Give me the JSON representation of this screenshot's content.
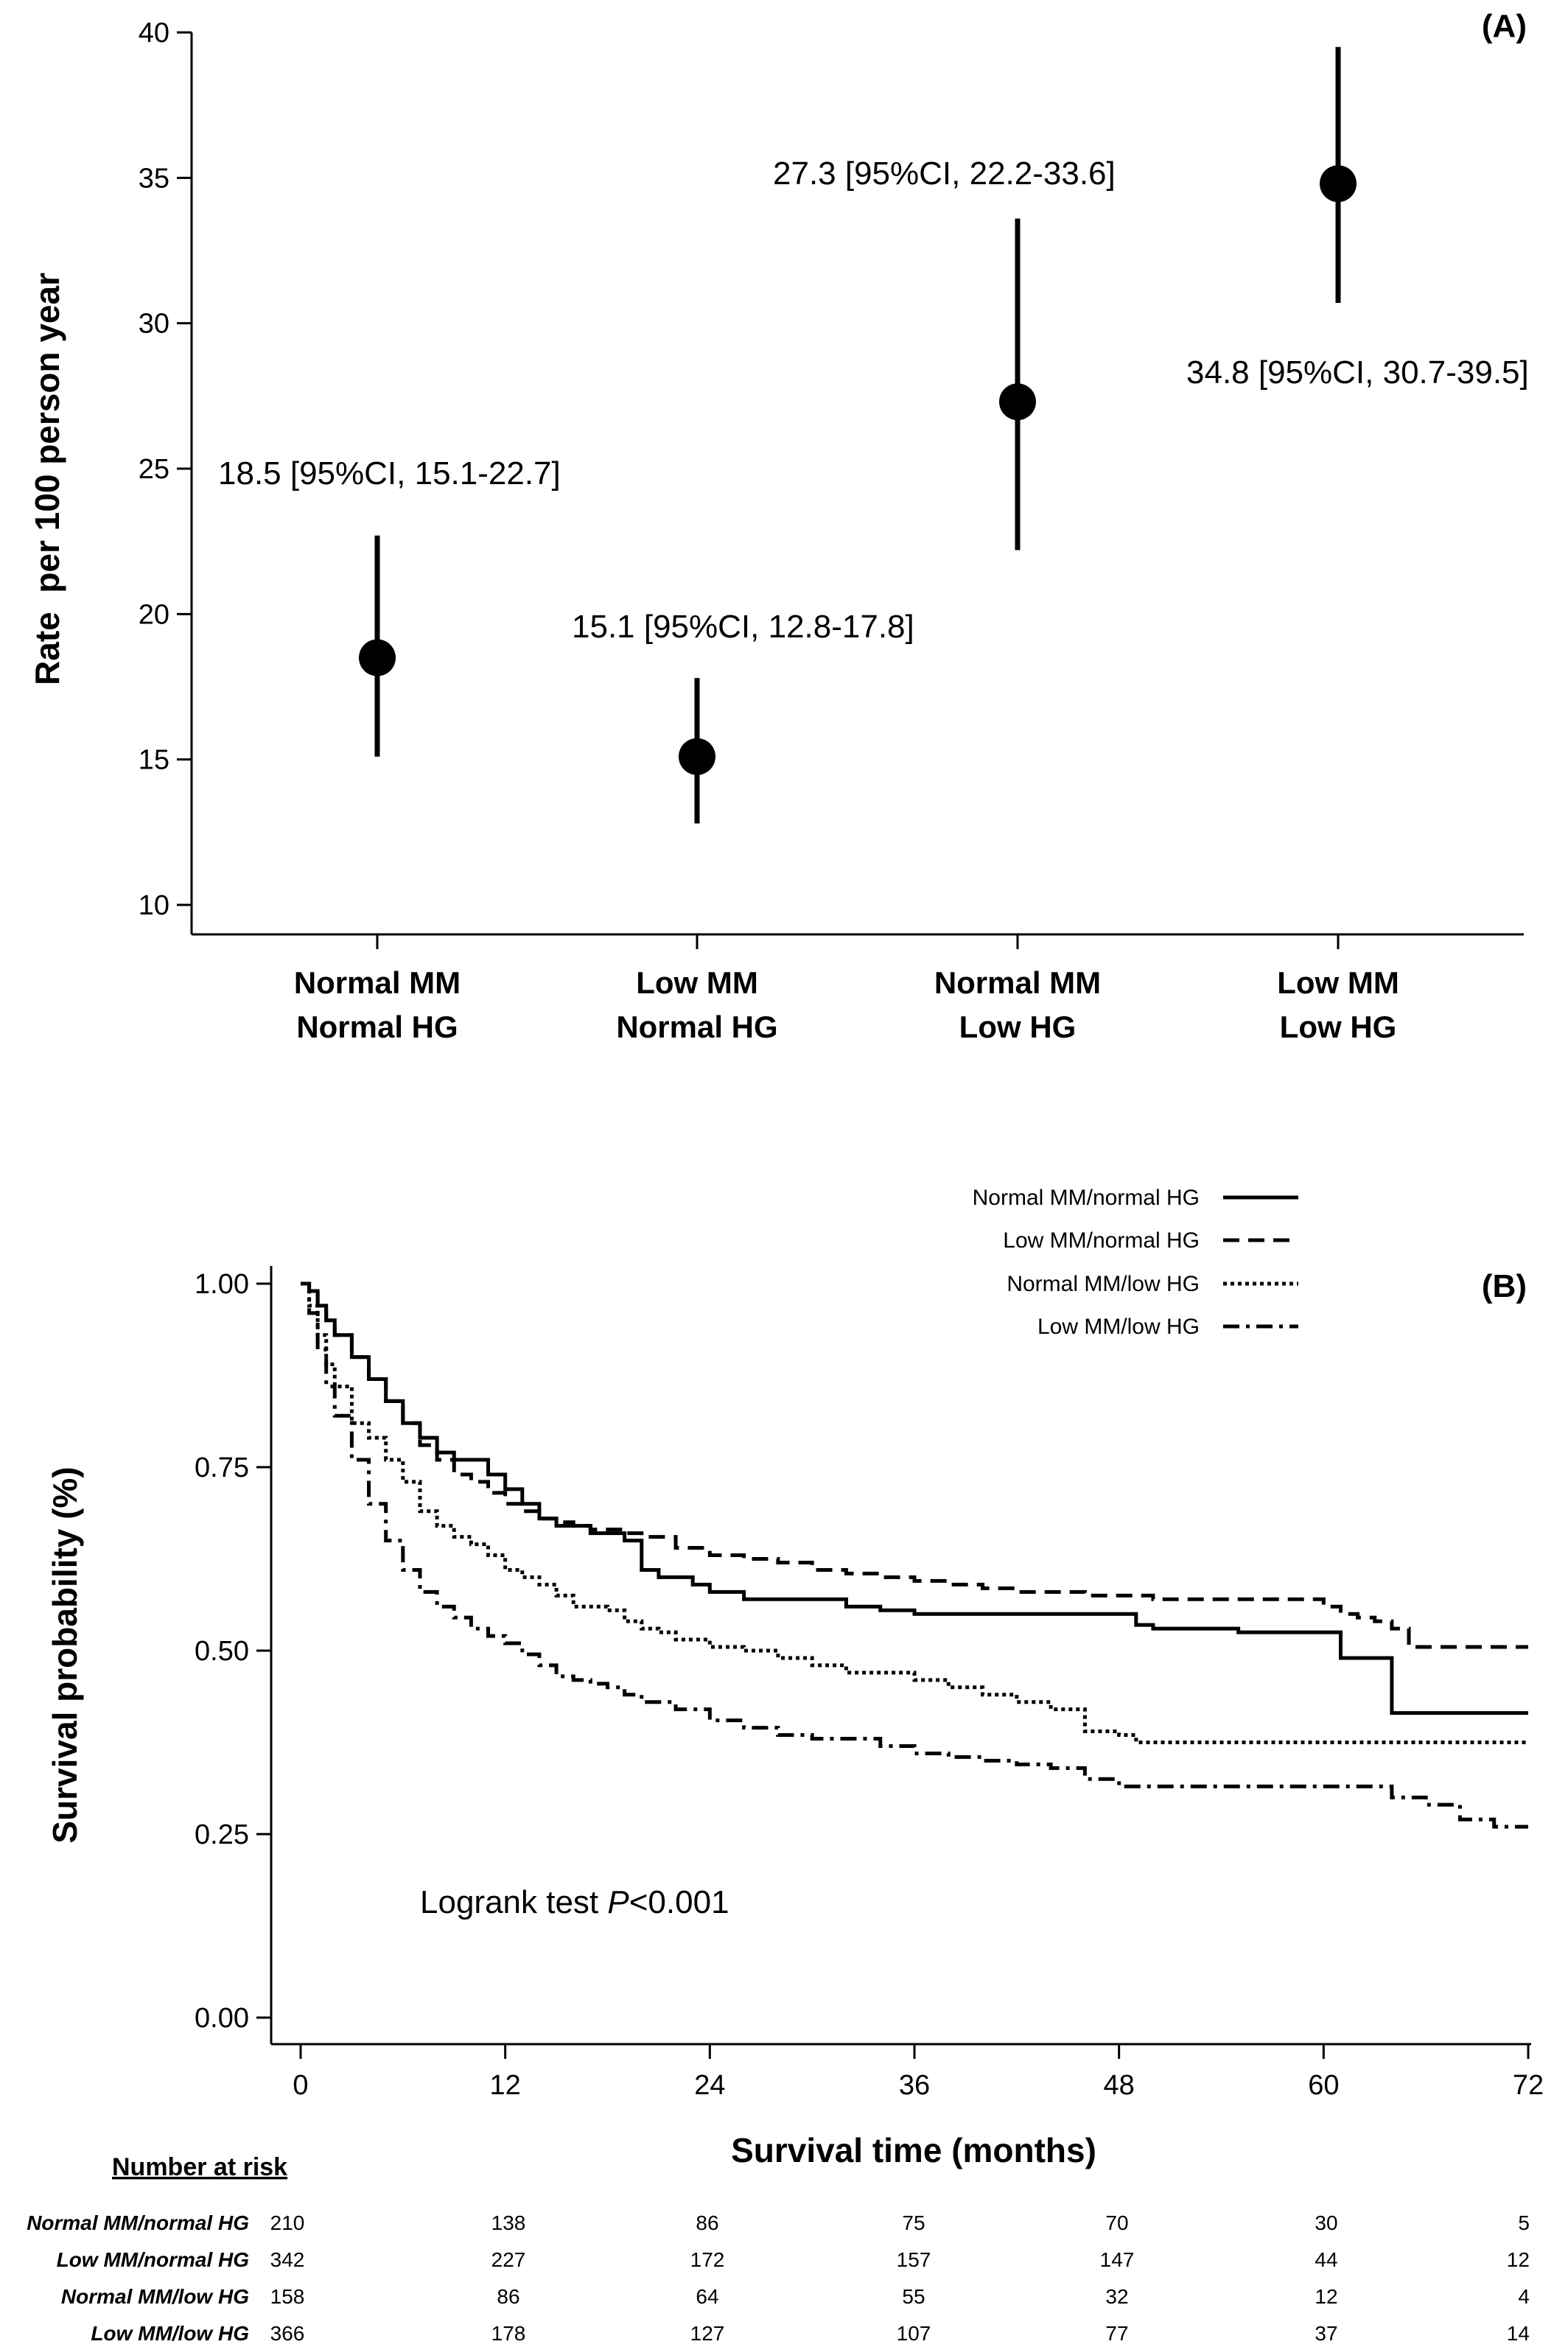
{
  "chart_data": [
    {
      "type": "scatter",
      "panel_label": "(A)",
      "ylabel": "Rate  per 100 person year",
      "ylim": [
        10,
        40
      ],
      "yticks": [
        "10",
        "15",
        "20",
        "25",
        "30",
        "35",
        "40"
      ],
      "categories": [
        [
          "Normal MM",
          "Normal HG"
        ],
        [
          "Low MM",
          "Normal HG"
        ],
        [
          "Normal MM",
          "Low HG"
        ],
        [
          "Low MM",
          "Low HG"
        ]
      ],
      "points": [
        {
          "value": 18.5,
          "lower": 15.1,
          "upper": 22.7,
          "label": "18.5 [95%CI, 15.1-22.7]"
        },
        {
          "value": 15.1,
          "lower": 12.8,
          "upper": 17.8,
          "label": "15.1 [95%CI, 12.8-17.8]"
        },
        {
          "value": 27.3,
          "lower": 22.2,
          "upper": 33.6,
          "label": "27.3 [95%CI, 22.2-33.6]"
        },
        {
          "value": 34.8,
          "lower": 30.7,
          "upper": 39.5,
          "label": "34.8 [95%CI, 30.7-39.5]"
        }
      ]
    },
    {
      "type": "line",
      "panel_label": "(B)",
      "xlabel": "Survival time (months)",
      "ylabel": "Survival probability (%)",
      "xlim": [
        0,
        72
      ],
      "ylim": [
        0,
        1
      ],
      "xticks": [
        "0",
        "12",
        "24",
        "36",
        "48",
        "60",
        "72"
      ],
      "yticks": [
        "0.00",
        "0.25",
        "0.50",
        "0.75",
        "1.00"
      ],
      "annotation_prefix": "Logrank test ",
      "annotation_p": "P",
      "annotation_suffix": "<0.001",
      "series": [
        {
          "name": "Normal MM/normal HG",
          "dash": "solid",
          "x": [
            0,
            0.5,
            1,
            1.5,
            2,
            3,
            4,
            5,
            6,
            7,
            8,
            9,
            10,
            11,
            12,
            13,
            14,
            15,
            16,
            17,
            18,
            19,
            20,
            21,
            22,
            23,
            24,
            26,
            28,
            30,
            32,
            34,
            36,
            40,
            44,
            48,
            49,
            50,
            55,
            60,
            61,
            62,
            63,
            64,
            66,
            68,
            70,
            72
          ],
          "y": [
            1.0,
            0.99,
            0.97,
            0.95,
            0.93,
            0.9,
            0.87,
            0.84,
            0.81,
            0.79,
            0.77,
            0.76,
            0.76,
            0.74,
            0.72,
            0.7,
            0.68,
            0.67,
            0.67,
            0.66,
            0.66,
            0.65,
            0.61,
            0.6,
            0.6,
            0.59,
            0.58,
            0.57,
            0.57,
            0.57,
            0.56,
            0.555,
            0.55,
            0.55,
            0.55,
            0.55,
            0.535,
            0.53,
            0.525,
            0.525,
            0.49,
            0.49,
            0.49,
            0.415,
            0.415,
            0.415,
            0.415,
            0.415
          ]
        },
        {
          "name": "Low MM/normal HG",
          "dash": "dashed",
          "x": [
            0,
            0.5,
            1,
            1.5,
            2,
            3,
            4,
            5,
            6,
            7,
            8,
            9,
            10,
            11,
            12,
            13,
            14,
            15,
            16,
            17,
            18,
            19,
            20,
            22,
            24,
            26,
            28,
            30,
            32,
            34,
            36,
            38,
            40,
            42,
            44,
            46,
            48,
            50,
            52,
            54,
            56,
            58,
            60,
            61,
            62,
            63,
            64,
            65,
            66,
            68,
            70,
            72
          ],
          "y": [
            1.0,
            0.99,
            0.97,
            0.95,
            0.93,
            0.9,
            0.87,
            0.84,
            0.81,
            0.78,
            0.76,
            0.74,
            0.73,
            0.715,
            0.7,
            0.69,
            0.68,
            0.675,
            0.67,
            0.665,
            0.665,
            0.66,
            0.655,
            0.64,
            0.63,
            0.625,
            0.62,
            0.61,
            0.605,
            0.6,
            0.595,
            0.59,
            0.585,
            0.58,
            0.58,
            0.575,
            0.575,
            0.57,
            0.57,
            0.57,
            0.57,
            0.57,
            0.56,
            0.55,
            0.545,
            0.54,
            0.53,
            0.505,
            0.505,
            0.505,
            0.505,
            0.505
          ]
        },
        {
          "name": "Normal MM/low HG",
          "dash": "dotted",
          "x": [
            0,
            0.5,
            1,
            1.5,
            2,
            3,
            4,
            5,
            6,
            7,
            8,
            9,
            10,
            11,
            12,
            13,
            14,
            15,
            16,
            17,
            18,
            19,
            20,
            21,
            22,
            24,
            26,
            28,
            30,
            32,
            34,
            36,
            38,
            40,
            42,
            44,
            46,
            48,
            49,
            50,
            52,
            54,
            56,
            58,
            60,
            64,
            68,
            72
          ],
          "y": [
            1.0,
            0.97,
            0.93,
            0.89,
            0.86,
            0.81,
            0.79,
            0.76,
            0.73,
            0.69,
            0.67,
            0.655,
            0.645,
            0.63,
            0.61,
            0.6,
            0.59,
            0.575,
            0.56,
            0.56,
            0.555,
            0.54,
            0.53,
            0.525,
            0.515,
            0.505,
            0.5,
            0.49,
            0.48,
            0.47,
            0.47,
            0.46,
            0.45,
            0.44,
            0.43,
            0.42,
            0.39,
            0.385,
            0.375,
            0.375,
            0.375,
            0.375,
            0.375,
            0.375,
            0.375,
            0.375,
            0.375,
            0.375
          ]
        },
        {
          "name": "Low MM/low HG",
          "dash": "dashdot",
          "x": [
            0,
            0.5,
            1,
            1.5,
            2,
            3,
            4,
            5,
            6,
            7,
            8,
            9,
            10,
            11,
            12,
            13,
            14,
            15,
            16,
            17,
            18,
            19,
            20,
            22,
            24,
            26,
            28,
            30,
            32,
            34,
            36,
            38,
            40,
            42,
            44,
            46,
            48,
            50,
            52,
            54,
            56,
            58,
            60,
            62,
            64,
            66,
            68,
            70,
            72
          ],
          "y": [
            1.0,
            0.96,
            0.91,
            0.86,
            0.82,
            0.76,
            0.7,
            0.65,
            0.61,
            0.58,
            0.56,
            0.545,
            0.53,
            0.52,
            0.51,
            0.495,
            0.48,
            0.465,
            0.46,
            0.455,
            0.45,
            0.44,
            0.43,
            0.42,
            0.405,
            0.395,
            0.385,
            0.38,
            0.38,
            0.37,
            0.36,
            0.355,
            0.35,
            0.345,
            0.34,
            0.325,
            0.315,
            0.315,
            0.315,
            0.315,
            0.315,
            0.315,
            0.315,
            0.315,
            0.3,
            0.29,
            0.27,
            0.26,
            0.26
          ]
        }
      ],
      "risk_table": {
        "title": "Number at risk",
        "rows": [
          {
            "label": "Normal MM/normal HG",
            "values": [
              "210",
              "138",
              "86",
              "75",
              "70",
              "30",
              "5"
            ]
          },
          {
            "label": "Low MM/normal HG",
            "values": [
              "342",
              "227",
              "172",
              "157",
              "147",
              "44",
              "12"
            ]
          },
          {
            "label": "Normal MM/low HG",
            "values": [
              "158",
              "86",
              "64",
              "55",
              "32",
              "12",
              "4"
            ]
          },
          {
            "label": "Low MM/low HG",
            "values": [
              "366",
              "178",
              "127",
              "107",
              "77",
              "37",
              "14"
            ]
          }
        ]
      }
    }
  ]
}
